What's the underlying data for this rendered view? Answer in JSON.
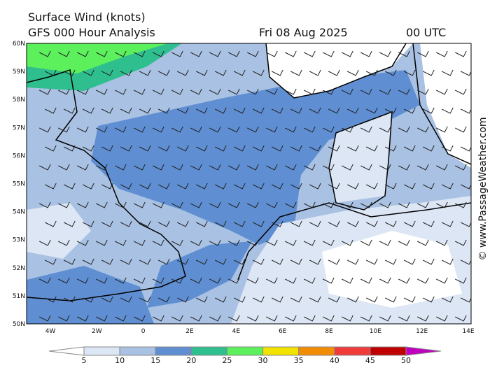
{
  "header": {
    "title": "Surface Wind (knots)",
    "subtitle": "GFS 000 Hour Analysis",
    "date": "Fri 08 Aug 2025",
    "time": "00 UTC"
  },
  "map": {
    "lat_labels": [
      "60N",
      "59N",
      "58N",
      "57N",
      "56N",
      "55N",
      "54N",
      "53N",
      "52N",
      "51N",
      "50N"
    ],
    "lon_labels": [
      "4W",
      "2W",
      "0",
      "2E",
      "4E",
      "6E",
      "8E",
      "10E",
      "12E",
      "14E"
    ]
  },
  "colorbar": {
    "levels": [
      5,
      10,
      15,
      20,
      25,
      30,
      35,
      40,
      45,
      50
    ],
    "colors": [
      "#ffffff",
      "#dde6f5",
      "#a9c1e2",
      "#5f8fd2",
      "#2fbf8f",
      "#5cf05c",
      "#f2e200",
      "#f28c00",
      "#f03a3a",
      "#bf0000",
      "#c000c0"
    ]
  },
  "credit": "© www.PassageWeather.com"
}
